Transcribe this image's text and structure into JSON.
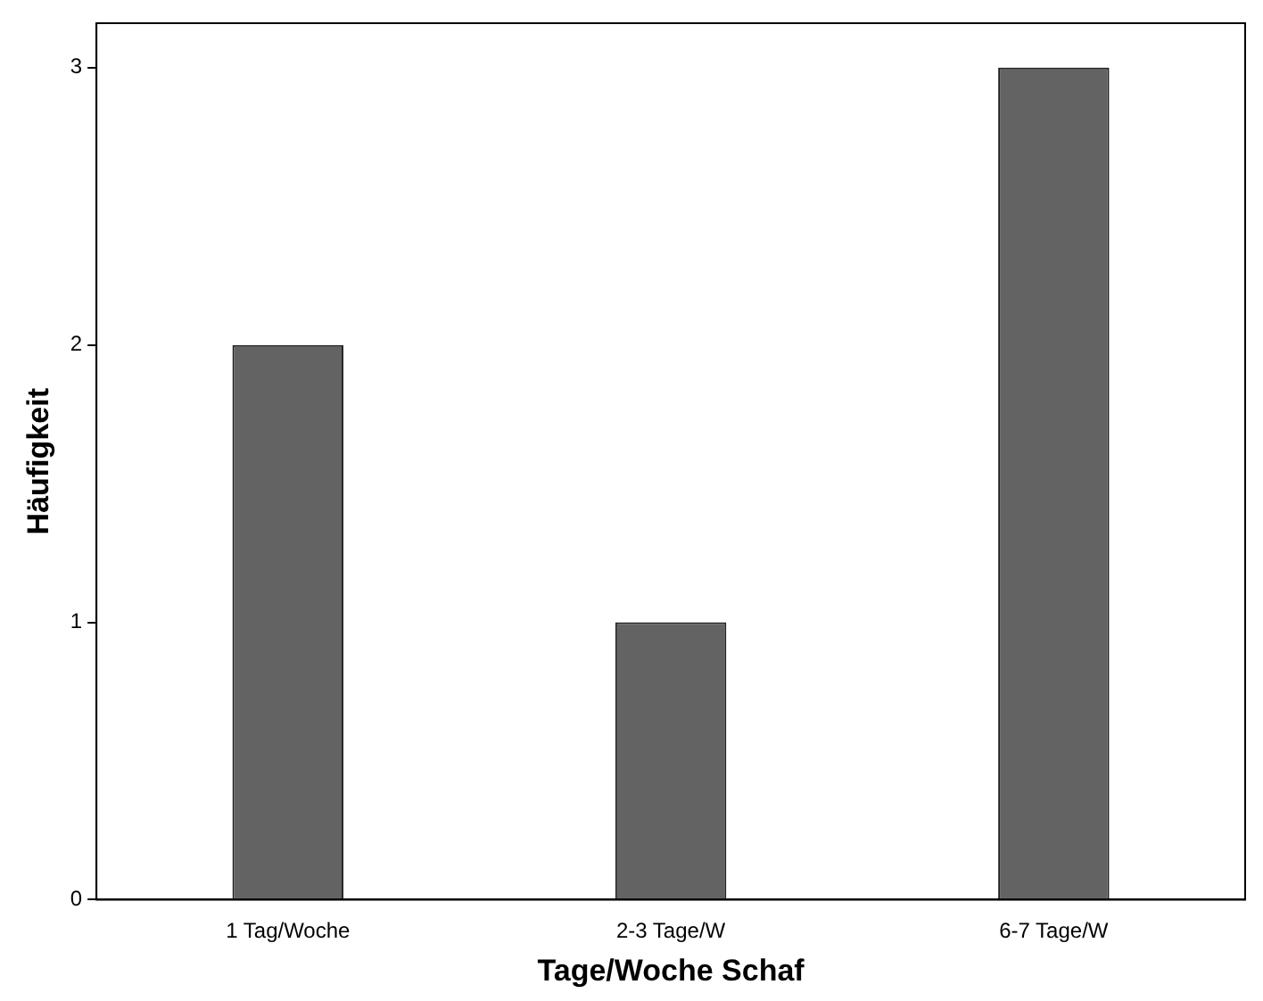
{
  "chart_data": {
    "type": "bar",
    "xlabel": "Tage/Woche Schaf",
    "ylabel": "Häufigkeit",
    "categories": [
      "1 Tag/Woche",
      "2-3 Tage/W",
      "6-7 Tage/W"
    ],
    "values": [
      2,
      1,
      3
    ],
    "color": "#636363",
    "ylim": [
      0,
      3.16
    ],
    "yticks": [
      0,
      1,
      2,
      3
    ]
  }
}
